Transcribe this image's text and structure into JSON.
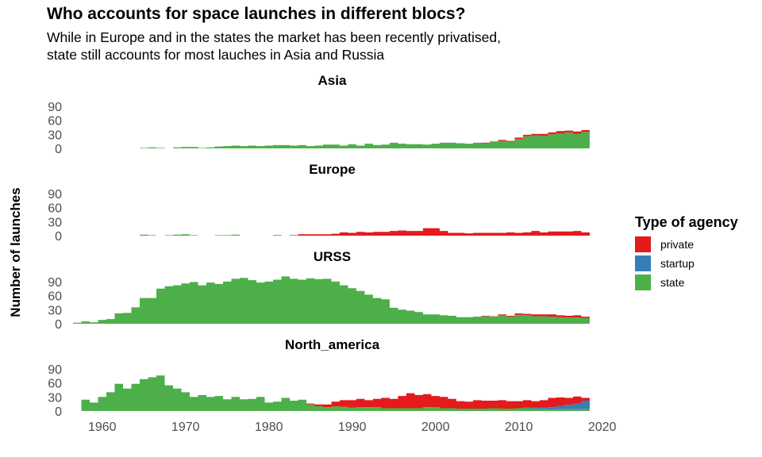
{
  "chart_data": {
    "type": "area",
    "title": "Who accounts for space launches in different blocs?",
    "subtitle": [
      "While in Europe and in the states the market has been recently privatised,",
      "state still accounts for most lauches in Asia and Russia"
    ],
    "xlabel": "",
    "ylabel": "Number of launches",
    "x": [
      1957,
      1958,
      1959,
      1960,
      1961,
      1962,
      1963,
      1964,
      1965,
      1966,
      1967,
      1968,
      1969,
      1970,
      1971,
      1972,
      1973,
      1974,
      1975,
      1976,
      1977,
      1978,
      1979,
      1980,
      1981,
      1982,
      1983,
      1984,
      1985,
      1986,
      1987,
      1988,
      1989,
      1990,
      1991,
      1992,
      1993,
      1994,
      1995,
      1996,
      1997,
      1998,
      1999,
      2000,
      2001,
      2002,
      2003,
      2004,
      2005,
      2006,
      2007,
      2008,
      2009,
      2010,
      2011,
      2012,
      2013,
      2014,
      2015,
      2016,
      2017,
      2018
    ],
    "xlim": [
      1956.5,
      2018.7
    ],
    "xticks": [
      1960,
      1970,
      1980,
      1990,
      2000,
      2010,
      2020
    ],
    "ylim": [
      0,
      100
    ],
    "yticks": [
      0,
      30,
      60,
      90
    ],
    "grid": false,
    "stack_order": [
      "state",
      "startup",
      "private"
    ],
    "legend": {
      "title": "Type of agency",
      "position": "right",
      "entries": [
        {
          "name": "private",
          "color": "#e41a1c"
        },
        {
          "name": "startup",
          "color": "#377eb8"
        },
        {
          "name": "state",
          "color": "#4daf4a"
        }
      ]
    },
    "facets": [
      {
        "name": "Asia",
        "series": [
          {
            "name": "state",
            "values": [
              0,
              0,
              0,
              0,
              0,
              0,
              0,
              0,
              1,
              2,
              1,
              0,
              2,
              3,
              3,
              1,
              2,
              4,
              5,
              6,
              5,
              6,
              5,
              6,
              7,
              7,
              6,
              7,
              5,
              6,
              8,
              8,
              6,
              9,
              6,
              10,
              7,
              8,
              12,
              10,
              9,
              9,
              8,
              10,
              12,
              12,
              11,
              10,
              12,
              11,
              14,
              16,
              14,
              20,
              26,
              28,
              27,
              30,
              32,
              34,
              31,
              35
            ]
          },
          {
            "name": "startup",
            "values": [
              0,
              0,
              0,
              0,
              0,
              0,
              0,
              0,
              0,
              0,
              0,
              0,
              0,
              0,
              0,
              0,
              0,
              0,
              0,
              0,
              0,
              0,
              0,
              0,
              0,
              0,
              0,
              0,
              0,
              0,
              0,
              0,
              0,
              0,
              0,
              0,
              0,
              0,
              0,
              0,
              0,
              0,
              0,
              0,
              0,
              0,
              0,
              0,
              0,
              0,
              0,
              0,
              0,
              0,
              0,
              0,
              0,
              0,
              0,
              0,
              0,
              0
            ]
          },
          {
            "name": "private",
            "values": [
              0,
              0,
              0,
              0,
              0,
              0,
              0,
              0,
              0,
              0,
              0,
              0,
              0,
              0,
              0,
              0,
              0,
              0,
              0,
              0,
              0,
              0,
              0,
              0,
              0,
              0,
              0,
              0,
              0,
              0,
              0,
              0,
              0,
              0,
              0,
              0,
              0,
              0,
              0,
              0,
              0,
              0,
              0,
              0,
              0,
              0,
              0,
              0,
              0,
              1,
              1,
              2,
              2,
              3,
              3,
              3,
              4,
              4,
              5,
              4,
              5,
              4
            ]
          }
        ]
      },
      {
        "name": "Europe",
        "series": [
          {
            "name": "state",
            "values": [
              0,
              0,
              0,
              0,
              0,
              0,
              0,
              0,
              2,
              1,
              0,
              1,
              2,
              3,
              1,
              0,
              0,
              1,
              1,
              2,
              0,
              0,
              0,
              0,
              0,
              0,
              0,
              0,
              0,
              0,
              0,
              0,
              0,
              0,
              0,
              0,
              0,
              0,
              0,
              0,
              0,
              0,
              0,
              0,
              0,
              0,
              0,
              0,
              0,
              0,
              0,
              0,
              0,
              0,
              0,
              0,
              0,
              0,
              0,
              0,
              0,
              0
            ]
          },
          {
            "name": "startup",
            "values": [
              0,
              0,
              0,
              0,
              0,
              0,
              0,
              0,
              0,
              0,
              0,
              0,
              0,
              0,
              0,
              0,
              0,
              0,
              0,
              0,
              0,
              0,
              0,
              0,
              0,
              0,
              0,
              0,
              0,
              0,
              0,
              0,
              0,
              0,
              0,
              0,
              0,
              0,
              0,
              0,
              0,
              0,
              0,
              0,
              0,
              0,
              0,
              0,
              0,
              0,
              0,
              0,
              0,
              0,
              0,
              0,
              0,
              0,
              0,
              0,
              0,
              0
            ]
          },
          {
            "name": "private",
            "values": [
              0,
              0,
              0,
              0,
              0,
              0,
              0,
              0,
              0,
              0,
              0,
              0,
              0,
              0,
              0,
              0,
              0,
              0,
              0,
              0,
              0,
              0,
              0,
              0,
              1,
              0,
              1,
              3,
              3,
              3,
              3,
              4,
              7,
              6,
              8,
              7,
              8,
              8,
              10,
              11,
              10,
              10,
              16,
              16,
              10,
              6,
              6,
              5,
              6,
              6,
              6,
              6,
              7,
              6,
              7,
              10,
              7,
              9,
              9,
              9,
              10,
              7
            ]
          }
        ]
      },
      {
        "name": "URSS",
        "series": [
          {
            "name": "state",
            "values": [
              2,
              5,
              3,
              8,
              10,
              22,
              23,
              35,
              55,
              55,
              75,
              80,
              82,
              86,
              89,
              82,
              88,
              85,
              90,
              96,
              98,
              93,
              88,
              90,
              94,
              101,
              96,
              94,
              97,
              95,
              96,
              90,
              82,
              76,
              70,
              62,
              55,
              52,
              34,
              30,
              28,
              25,
              20,
              20,
              18,
              17,
              14,
              14,
              15,
              16,
              15,
              18,
              15,
              19,
              18,
              16,
              16,
              15,
              14,
              13,
              13,
              12
            ]
          },
          {
            "name": "startup",
            "values": [
              0,
              0,
              0,
              0,
              0,
              0,
              0,
              0,
              0,
              0,
              0,
              0,
              0,
              0,
              0,
              0,
              0,
              0,
              0,
              0,
              0,
              0,
              0,
              0,
              0,
              0,
              0,
              0,
              0,
              0,
              0,
              0,
              0,
              0,
              0,
              0,
              0,
              0,
              0,
              0,
              0,
              0,
              0,
              0,
              0,
              0,
              0,
              0,
              0,
              0,
              0,
              0,
              0,
              0,
              0,
              0,
              0,
              0,
              0,
              0,
              0,
              0
            ]
          },
          {
            "name": "private",
            "values": [
              0,
              0,
              0,
              0,
              0,
              0,
              0,
              0,
              0,
              0,
              0,
              0,
              0,
              0,
              0,
              0,
              0,
              0,
              0,
              0,
              0,
              0,
              0,
              0,
              0,
              0,
              0,
              0,
              0,
              0,
              0,
              0,
              0,
              0,
              0,
              0,
              0,
              0,
              0,
              0,
              0,
              0,
              0,
              0,
              0,
              0,
              0,
              0,
              0,
              1,
              1,
              2,
              2,
              3,
              3,
              4,
              4,
              5,
              4,
              4,
              5,
              3
            ]
          }
        ]
      },
      {
        "name": "North_america",
        "series": [
          {
            "name": "state",
            "values": [
              0,
              24,
              18,
              30,
              40,
              58,
              48,
              58,
              68,
              72,
              76,
              55,
              48,
              40,
              30,
              34,
              30,
              32,
              25,
              30,
              25,
              26,
              30,
              18,
              20,
              28,
              22,
              24,
              14,
              10,
              8,
              10,
              9,
              7,
              8,
              8,
              8,
              6,
              6,
              6,
              6,
              6,
              8,
              8,
              6,
              6,
              5,
              5,
              5,
              5,
              6,
              5,
              5,
              6,
              6,
              5,
              4,
              3,
              4,
              4,
              4,
              4
            ]
          },
          {
            "name": "startup",
            "values": [
              0,
              0,
              0,
              0,
              0,
              0,
              0,
              0,
              0,
              0,
              0,
              0,
              0,
              0,
              0,
              0,
              0,
              0,
              0,
              0,
              0,
              0,
              0,
              0,
              0,
              0,
              0,
              0,
              0,
              0,
              0,
              0,
              0,
              0,
              0,
              0,
              0,
              0,
              0,
              0,
              0,
              0,
              0,
              0,
              0,
              0,
              0,
              0,
              0,
              0,
              0,
              0,
              0,
              0,
              1,
              2,
              3,
              5,
              7,
              9,
              12,
              18
            ]
          },
          {
            "name": "private",
            "values": [
              0,
              0,
              0,
              0,
              0,
              0,
              0,
              0,
              0,
              0,
              0,
              0,
              0,
              0,
              0,
              0,
              0,
              0,
              0,
              0,
              0,
              0,
              0,
              0,
              0,
              0,
              0,
              0,
              2,
              4,
              6,
              10,
              14,
              16,
              18,
              15,
              18,
              22,
              20,
              26,
              32,
              28,
              28,
              24,
              24,
              20,
              16,
              15,
              18,
              17,
              16,
              18,
              16,
              15,
              16,
              14,
              16,
              20,
              18,
              15,
              15,
              6
            ]
          }
        ]
      }
    ]
  }
}
